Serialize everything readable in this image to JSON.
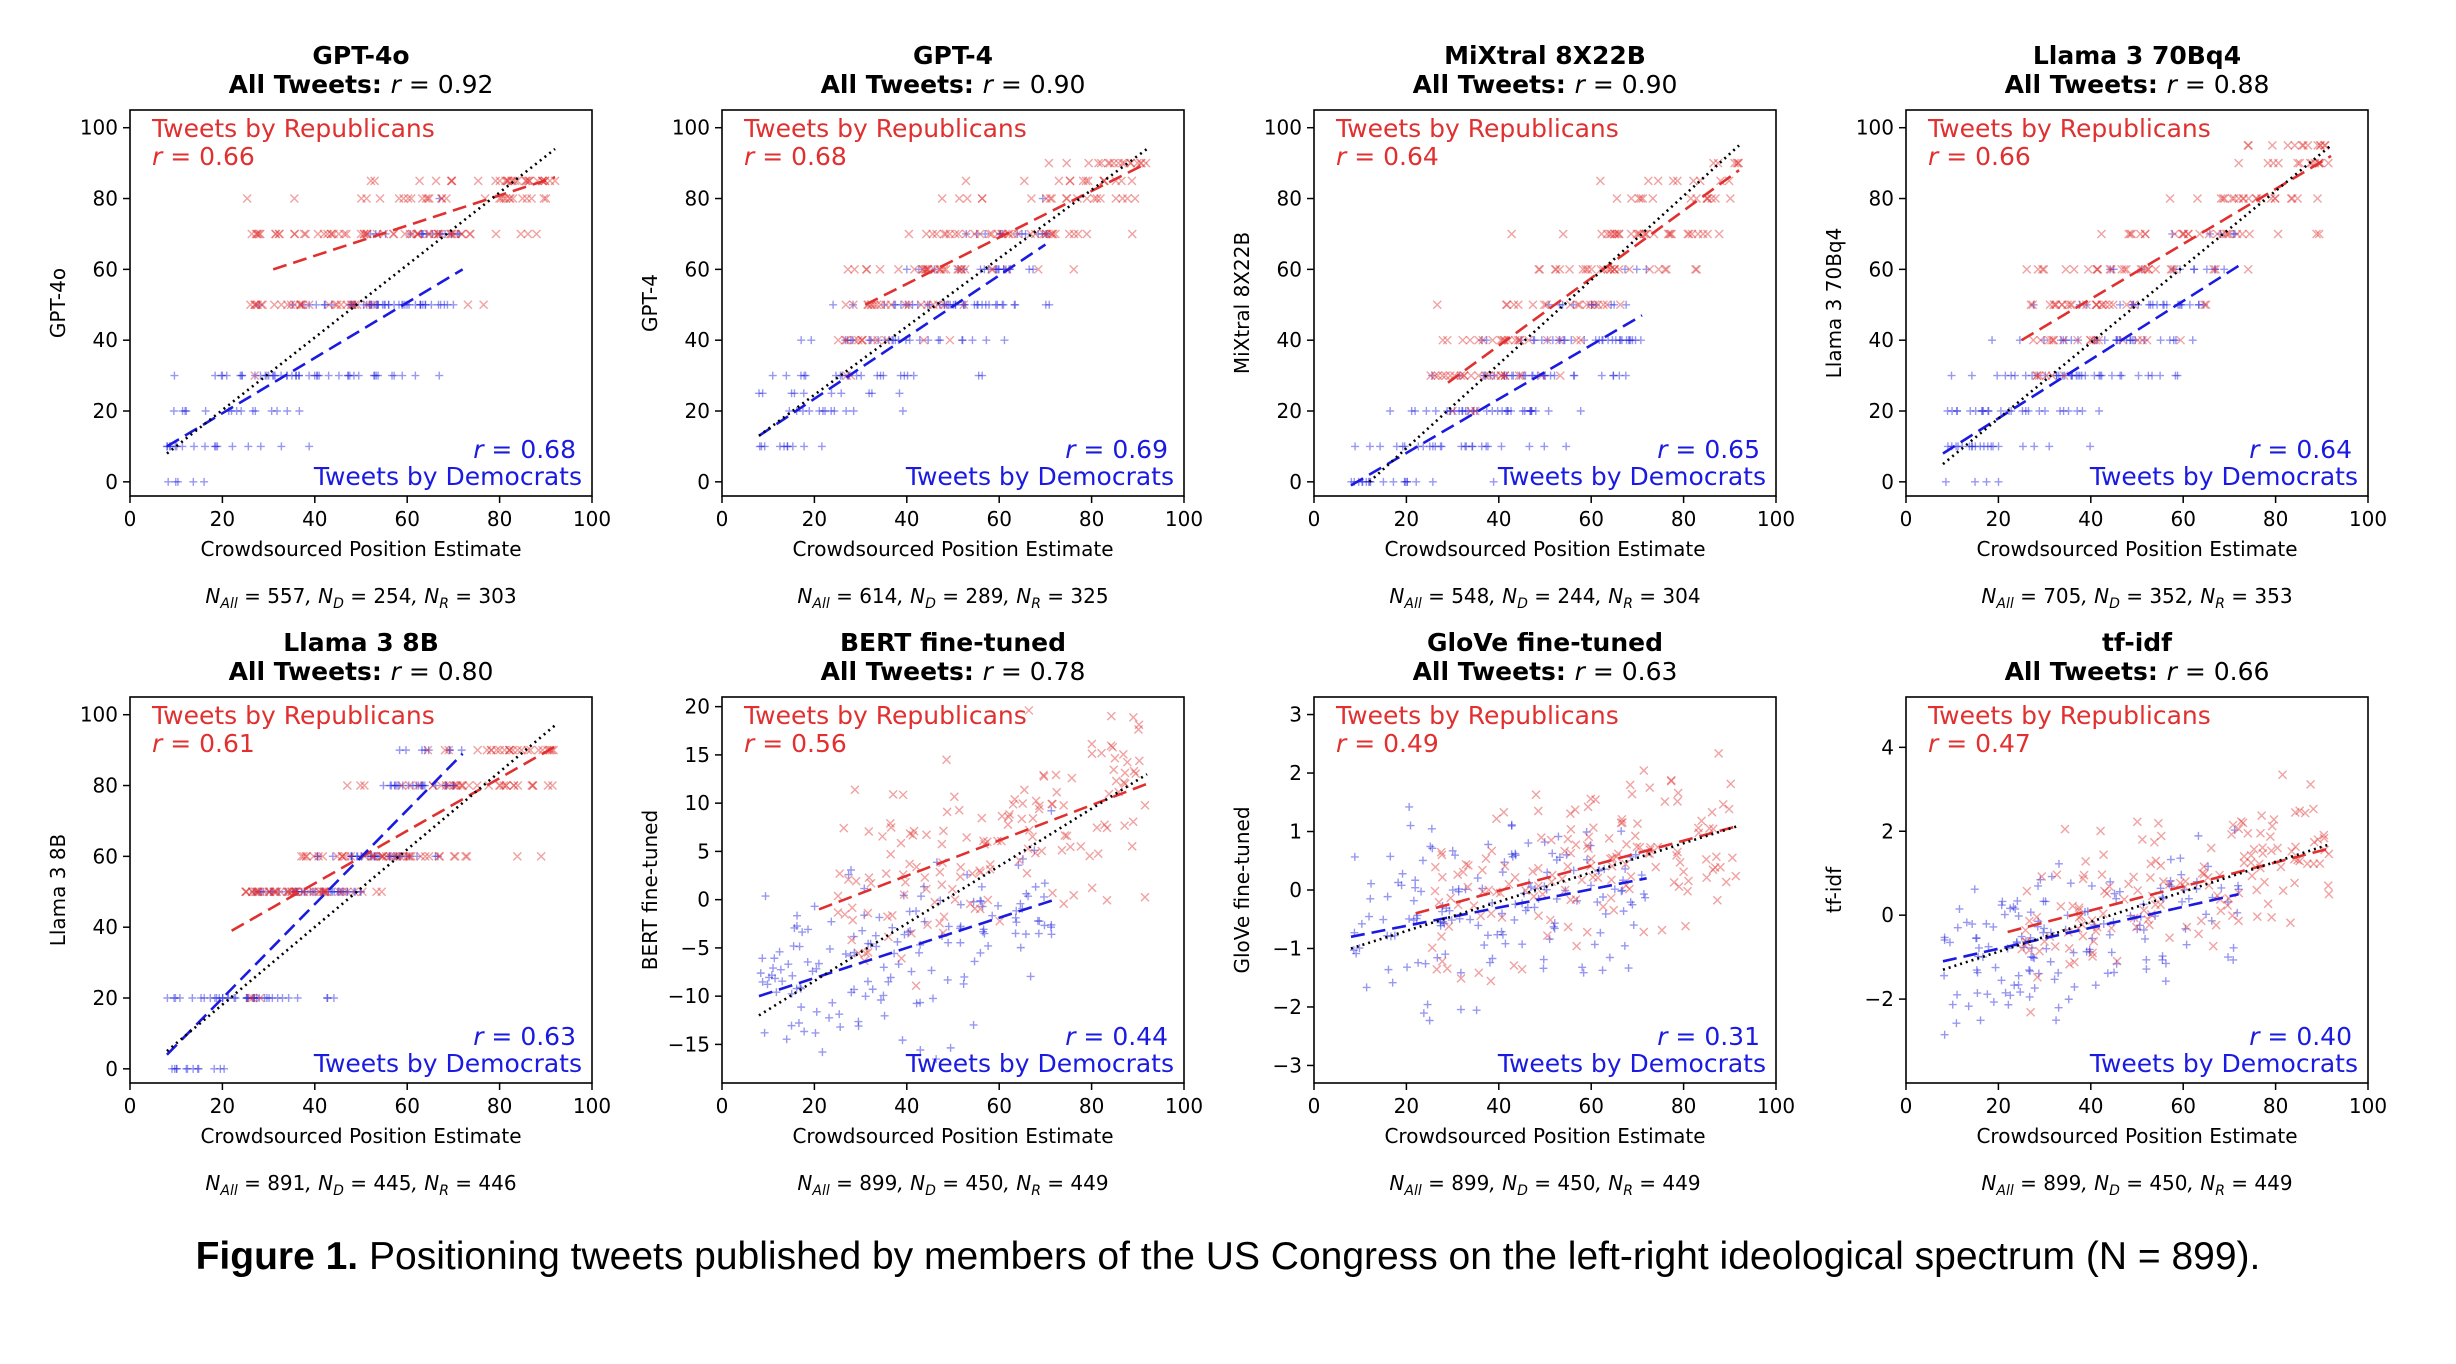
{
  "caption": {
    "label": "Figure 1.",
    "text": "Positioning tweets published by members of the US Congress on the left-right ideological spectrum (N = 899)."
  },
  "colors": {
    "republican": "#e03030",
    "democrat": "#1a1ae0",
    "overall": "#000000"
  },
  "common": {
    "xlabel": "Crowdsourced Position Estimate",
    "xlim": [
      0,
      100
    ],
    "xticks": [
      0,
      20,
      40,
      60,
      80,
      100
    ],
    "all_tweets_prefix": "All Tweets:",
    "rep_label": "Tweets by Republicans",
    "dem_label": "Tweets by Democrats"
  },
  "chart_data": [
    {
      "type": "scatter",
      "title": "GPT-4o",
      "all_r": "0.92",
      "rep_r": "0.66",
      "dem_r": "0.68",
      "ylabel": "GPT-4o",
      "ylim": [
        -4,
        105
      ],
      "yticks": [
        0,
        20,
        40,
        60,
        80,
        100
      ],
      "discrete": [
        0,
        10,
        20,
        30,
        50,
        70,
        80,
        85
      ],
      "fit": {
        "all": [
          8,
          92,
          8,
          94
        ],
        "rep": [
          31,
          92,
          60,
          86
        ],
        "dem": [
          8,
          72,
          10,
          60
        ]
      },
      "n": {
        "all": "557",
        "d": "254",
        "r": "303"
      }
    },
    {
      "type": "scatter",
      "title": "GPT-4",
      "all_r": "0.90",
      "rep_r": "0.68",
      "dem_r": "0.69",
      "ylabel": "GPT-4",
      "ylim": [
        -4,
        105
      ],
      "yticks": [
        0,
        20,
        40,
        60,
        80,
        100
      ],
      "discrete": [
        10,
        20,
        25,
        30,
        40,
        50,
        60,
        70,
        80,
        85,
        90
      ],
      "fit": {
        "all": [
          8,
          92,
          13,
          94
        ],
        "rep": [
          31,
          92,
          50,
          90
        ],
        "dem": [
          8,
          70,
          13,
          67
        ]
      },
      "n": {
        "all": "614",
        "d": "289",
        "r": "325"
      }
    },
    {
      "type": "scatter",
      "title": "MiXtral 8X22B",
      "all_r": "0.90",
      "rep_r": "0.64",
      "dem_r": "0.65",
      "ylabel": "MiXtral 8X22B",
      "ylim": [
        -4,
        105
      ],
      "yticks": [
        0,
        20,
        40,
        60,
        80,
        100
      ],
      "discrete": [
        0,
        10,
        20,
        30,
        40,
        50,
        60,
        70,
        80,
        85,
        90
      ],
      "fit": {
        "all": [
          12,
          92,
          0,
          95
        ],
        "rep": [
          29,
          92,
          28,
          88
        ],
        "dem": [
          8,
          71,
          -1,
          47
        ]
      },
      "n": {
        "all": "548",
        "d": "244",
        "r": "304"
      }
    },
    {
      "type": "scatter",
      "title": "Llama 3 70Bq4",
      "all_r": "0.88",
      "rep_r": "0.66",
      "dem_r": "0.64",
      "ylabel": "Llama 3 70Bq4",
      "ylim": [
        -4,
        105
      ],
      "yticks": [
        0,
        20,
        40,
        60,
        80,
        100
      ],
      "discrete": [
        0,
        10,
        20,
        30,
        40,
        50,
        60,
        70,
        80,
        90,
        95
      ],
      "fit": {
        "all": [
          8,
          92,
          5,
          95
        ],
        "rep": [
          25,
          92,
          40,
          92
        ],
        "dem": [
          8,
          72,
          8,
          61
        ]
      },
      "n": {
        "all": "705",
        "d": "352",
        "r": "353"
      }
    },
    {
      "type": "scatter",
      "title": "Llama 3 8B",
      "all_r": "0.80",
      "rep_r": "0.61",
      "dem_r": "0.63",
      "ylabel": "Llama 3 8B",
      "ylim": [
        -4,
        105
      ],
      "yticks": [
        0,
        20,
        40,
        60,
        80,
        100
      ],
      "discrete": [
        0,
        20,
        50,
        60,
        80,
        90
      ],
      "fit": {
        "all": [
          8,
          92,
          5,
          97
        ],
        "rep": [
          22,
          92,
          39,
          91
        ],
        "dem": [
          8,
          72,
          4,
          89
        ]
      },
      "n": {
        "all": "891",
        "d": "445",
        "r": "446"
      }
    },
    {
      "type": "scatter",
      "title": "BERT fine-tuned",
      "all_r": "0.78",
      "rep_r": "0.56",
      "dem_r": "0.44",
      "ylabel": "BERT fine-tuned",
      "ylim": [
        -19,
        21
      ],
      "yticks": [
        -15,
        -10,
        -5,
        0,
        5,
        10,
        15,
        20
      ],
      "spread": 4.5,
      "fit": {
        "all": [
          8,
          92,
          -12,
          13
        ],
        "rep": [
          21,
          92,
          -1,
          12
        ],
        "dem": [
          8,
          72,
          -10,
          0
        ]
      },
      "n": {
        "all": "899",
        "d": "450",
        "r": "449"
      }
    },
    {
      "type": "scatter",
      "title": "GloVe fine-tuned",
      "all_r": "0.63",
      "rep_r": "0.49",
      "dem_r": "0.31",
      "ylabel": "GloVe fine-tuned",
      "ylim": [
        -3.3,
        3.3
      ],
      "yticks": [
        -3,
        -2,
        -1,
        0,
        1,
        2,
        3
      ],
      "spread": 0.75,
      "fit": {
        "all": [
          8,
          92,
          -1.0,
          1.1
        ],
        "rep": [
          22,
          92,
          -0.4,
          1.1
        ],
        "dem": [
          8,
          72,
          -0.8,
          0.2
        ]
      },
      "n": {
        "all": "899",
        "d": "450",
        "r": "449"
      }
    },
    {
      "type": "scatter",
      "title": "tf-idf",
      "all_r": "0.66",
      "rep_r": "0.47",
      "dem_r": "0.40",
      "ylabel": "tf-idf",
      "ylim": [
        -4,
        5.2
      ],
      "yticks": [
        -2,
        0,
        2,
        4
      ],
      "spread": 0.85,
      "fit": {
        "all": [
          8,
          92,
          -1.3,
          1.7
        ],
        "rep": [
          22,
          92,
          -0.4,
          1.6
        ],
        "dem": [
          8,
          72,
          -1.1,
          0.5
        ]
      },
      "n": {
        "all": "899",
        "d": "450",
        "r": "449"
      }
    }
  ]
}
